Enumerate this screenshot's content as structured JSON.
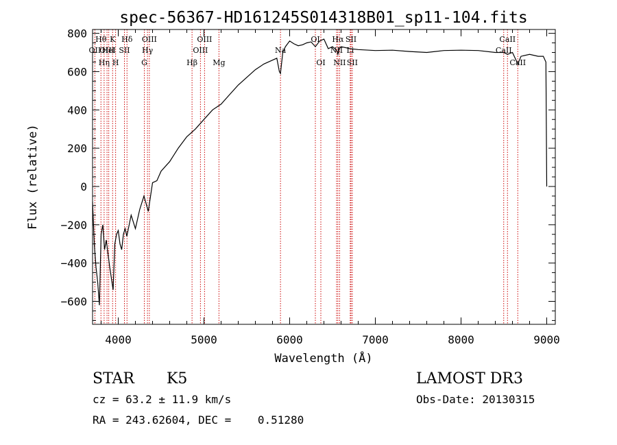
{
  "chart_data": {
    "type": "line",
    "title": "spec-56367-HD161245S014318B01_sp11-104.fits",
    "xlabel": "Wavelength (Å)",
    "ylabel": "Flux (relative)",
    "xlim": [
      3700,
      9100
    ],
    "ylim": [
      -720,
      820
    ],
    "x_ticks": [
      4000,
      5000,
      6000,
      7000,
      8000,
      9000
    ],
    "x_tick_labels": [
      "4000",
      "5000",
      "6000",
      "7000",
      "8000",
      "9000"
    ],
    "y_ticks": [
      -600,
      -400,
      -200,
      0,
      200,
      400,
      600,
      800
    ],
    "y_tick_labels": [
      "−600",
      "−400",
      "−200",
      "0",
      "200",
      "400",
      "600",
      "800"
    ],
    "grid": false,
    "series": [
      {
        "color": "#000000",
        "x": [
          3700,
          3720,
          3740,
          3760,
          3780,
          3800,
          3820,
          3840,
          3860,
          3880,
          3900,
          3920,
          3940,
          3960,
          3980,
          4000,
          4020,
          4040,
          4060,
          4080,
          4100,
          4150,
          4200,
          4250,
          4300,
          4350,
          4400,
          4450,
          4500,
          4600,
          4700,
          4800,
          4850,
          4900,
          5000,
          5100,
          5200,
          5300,
          5400,
          5500,
          5600,
          5700,
          5800,
          5850,
          5880,
          5893,
          5920,
          5950,
          6000,
          6050,
          6100,
          6150,
          6200,
          6250,
          6300,
          6350,
          6400,
          6450,
          6500,
          6550,
          6563,
          6580,
          6600,
          6700,
          6800,
          7000,
          7200,
          7400,
          7600,
          7800,
          8000,
          8200,
          8400,
          8498,
          8542,
          8600,
          8662,
          8700,
          8800,
          8900,
          8960,
          8990,
          9000
        ],
        "y": [
          -80,
          -300,
          -420,
          -500,
          -620,
          -250,
          -200,
          -330,
          -280,
          -350,
          -420,
          -480,
          -540,
          -300,
          -250,
          -230,
          -300,
          -330,
          -250,
          -220,
          -260,
          -150,
          -220,
          -120,
          -50,
          -130,
          20,
          30,
          80,
          130,
          200,
          260,
          280,
          300,
          350,
          400,
          430,
          480,
          530,
          570,
          610,
          640,
          660,
          670,
          600,
          590,
          700,
          730,
          760,
          745,
          735,
          740,
          750,
          755,
          730,
          760,
          770,
          720,
          730,
          710,
          690,
          720,
          730,
          720,
          715,
          710,
          712,
          705,
          700,
          710,
          712,
          710,
          700,
          700,
          690,
          700,
          640,
          680,
          690,
          680,
          680,
          650,
          0
        ]
      }
    ],
    "line_annotations": [
      {
        "x": 3727,
        "label": "OII",
        "row": 2
      },
      {
        "x": 3798,
        "label": "Hθ",
        "row": 1
      },
      {
        "x": 3835,
        "label": "Hη",
        "row": 3
      },
      {
        "x": 3869,
        "label": "OIII",
        "row": 2
      },
      {
        "x": 3889,
        "label": "HeI",
        "row": 2
      },
      {
        "x": 3934,
        "label": "K",
        "row": 1
      },
      {
        "x": 3969,
        "label": "H",
        "row": 3
      },
      {
        "x": 4072,
        "label": "SII",
        "row": 2
      },
      {
        "x": 4102,
        "label": "Hδ",
        "row": 1
      },
      {
        "x": 4304,
        "label": "G",
        "row": 3
      },
      {
        "x": 4341,
        "label": "Hγ",
        "row": 2
      },
      {
        "x": 4363,
        "label": "OIII",
        "row": 1
      },
      {
        "x": 4861,
        "label": "Hβ",
        "row": 3
      },
      {
        "x": 4959,
        "label": "OIII",
        "row": 2
      },
      {
        "x": 5007,
        "label": "OIII",
        "row": 1
      },
      {
        "x": 5175,
        "label": "Mg",
        "row": 3
      },
      {
        "x": 5893,
        "label": "Na",
        "row": 2
      },
      {
        "x": 6300,
        "label": "OI",
        "row": 1
      },
      {
        "x": 6364,
        "label": "OI",
        "row": 3
      },
      {
        "x": 6548,
        "label": "NII",
        "row": 2
      },
      {
        "x": 6563,
        "label": "Hα",
        "row": 1
      },
      {
        "x": 6583,
        "label": "NII",
        "row": 3
      },
      {
        "x": 6707,
        "label": "Li",
        "row": 2
      },
      {
        "x": 6716,
        "label": "SII",
        "row": 1
      },
      {
        "x": 6731,
        "label": "SII",
        "row": 3
      },
      {
        "x": 8498,
        "label": "CaII",
        "row": 2
      },
      {
        "x": 8542,
        "label": "CaII",
        "row": 1
      },
      {
        "x": 8662,
        "label": "CaII",
        "row": 3
      }
    ]
  },
  "info": {
    "class": "STAR",
    "subclass": "K5",
    "survey": "LAMOST DR3",
    "cz": "cz = 63.2 ± 11.9 km/s",
    "obs_date": "Obs-Date: 20130315",
    "coords": "RA = 243.62604, DEC =    0.51280"
  }
}
